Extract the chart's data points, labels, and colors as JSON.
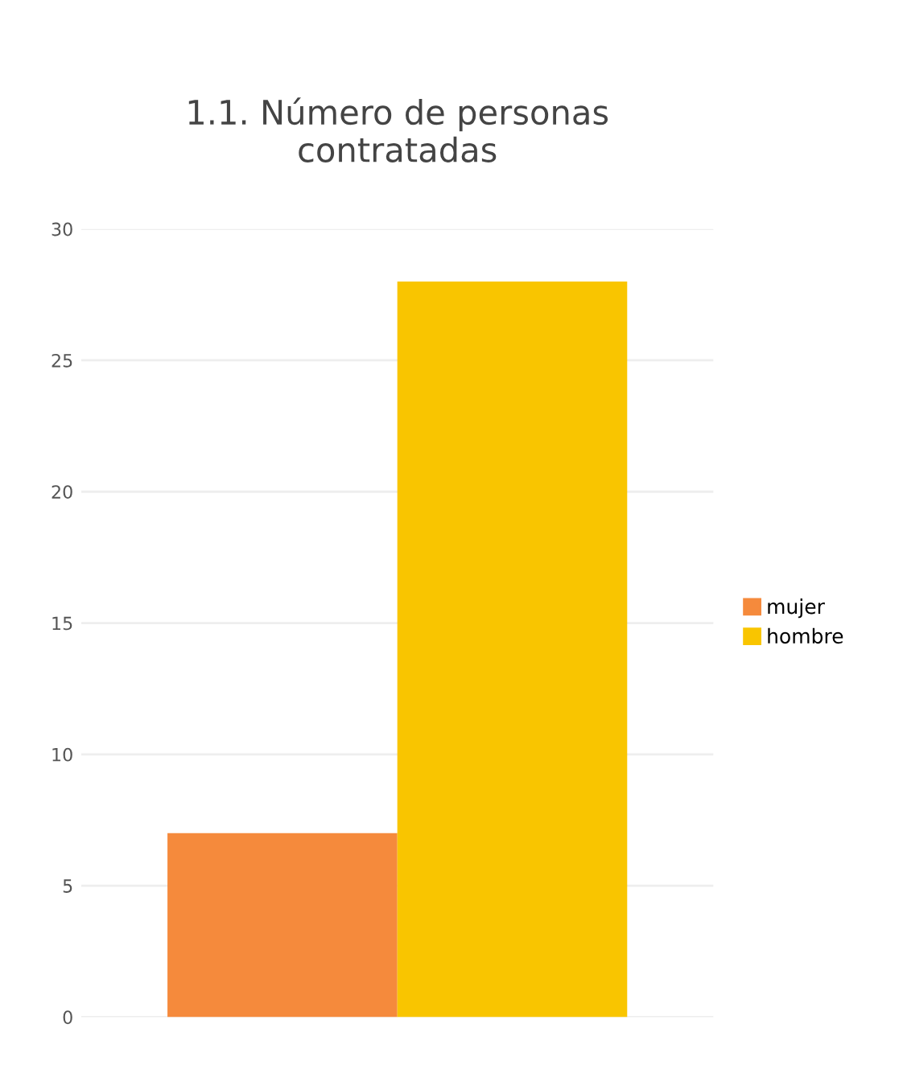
{
  "chart_data": {
    "type": "bar",
    "title": "1.1. Número de personas\ncontratadas",
    "categories": [
      null
    ],
    "series": [
      {
        "name": "mujer",
        "color": "#f58a3c",
        "values": [
          7
        ]
      },
      {
        "name": "hombre",
        "color": "#f9c500",
        "values": [
          28
        ]
      }
    ],
    "ylim": [
      0,
      30
    ],
    "yticks": [
      0,
      5,
      10,
      15,
      20,
      25,
      30
    ],
    "grid": "y",
    "legend": "right"
  }
}
